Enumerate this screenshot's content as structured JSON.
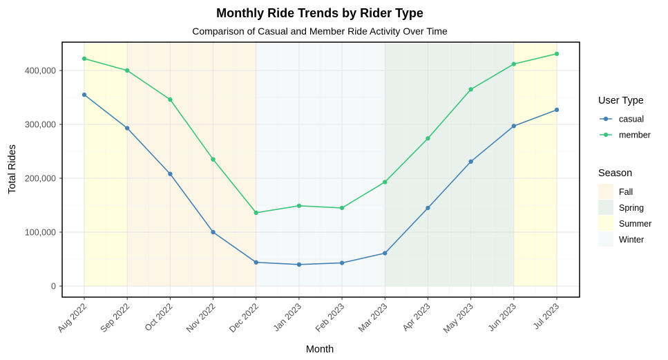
{
  "chart_data": {
    "type": "line",
    "title": "Monthly Ride Trends by Rider Type",
    "subtitle": "Comparison of Casual and Member Ride Activity Over Time",
    "xlabel": "Month",
    "ylabel": "Total Rides",
    "categories": [
      "Aug 2022",
      "Sep 2022",
      "Oct 2022",
      "Nov 2022",
      "Dec 2022",
      "Jan 2023",
      "Feb 2023",
      "Mar 2023",
      "Apr 2023",
      "May 2023",
      "Jun 2023",
      "Jul 2023"
    ],
    "ylim": [
      0,
      450000
    ],
    "yticks": [
      0,
      100000,
      200000,
      300000,
      400000
    ],
    "ytick_labels": [
      "0",
      "100,000",
      "200,000",
      "300,000",
      "400,000"
    ],
    "grid": true,
    "legend_position": "right",
    "series": [
      {
        "name": "casual",
        "color": "#4682B4",
        "values": [
          355000,
          293000,
          208000,
          100000,
          44000,
          40000,
          43000,
          61000,
          145000,
          231000,
          297000,
          327000
        ]
      },
      {
        "name": "member",
        "color": "#3CC47C",
        "values": [
          422000,
          400000,
          346000,
          235000,
          136000,
          149000,
          145000,
          193000,
          274000,
          365000,
          412000,
          431000
        ]
      }
    ],
    "seasons": [
      {
        "name": "Summer",
        "start_index": 0,
        "end_index": 1,
        "color": "#FFFFE0"
      },
      {
        "name": "Fall",
        "start_index": 1,
        "end_index": 4,
        "color": "#FDF5E6"
      },
      {
        "name": "Winter",
        "start_index": 4,
        "end_index": 7,
        "color": "#F5F9FA"
      },
      {
        "name": "Spring",
        "start_index": 7,
        "end_index": 10,
        "color": "#E8F1EC"
      },
      {
        "name": "Summer",
        "start_index": 10,
        "end_index": 11,
        "color": "#FFFFE0"
      }
    ],
    "legend": {
      "user_type_title": "User Type",
      "user_types": [
        {
          "label": "casual",
          "color": "#4682B4"
        },
        {
          "label": "member",
          "color": "#3CC47C"
        }
      ],
      "season_title": "Season",
      "seasons": [
        {
          "label": "Fall",
          "color": "#FDF5E6"
        },
        {
          "label": "Spring",
          "color": "#E8F1EC"
        },
        {
          "label": "Summer",
          "color": "#FFFFE0"
        },
        {
          "label": "Winter",
          "color": "#F5F9FA"
        }
      ]
    }
  }
}
